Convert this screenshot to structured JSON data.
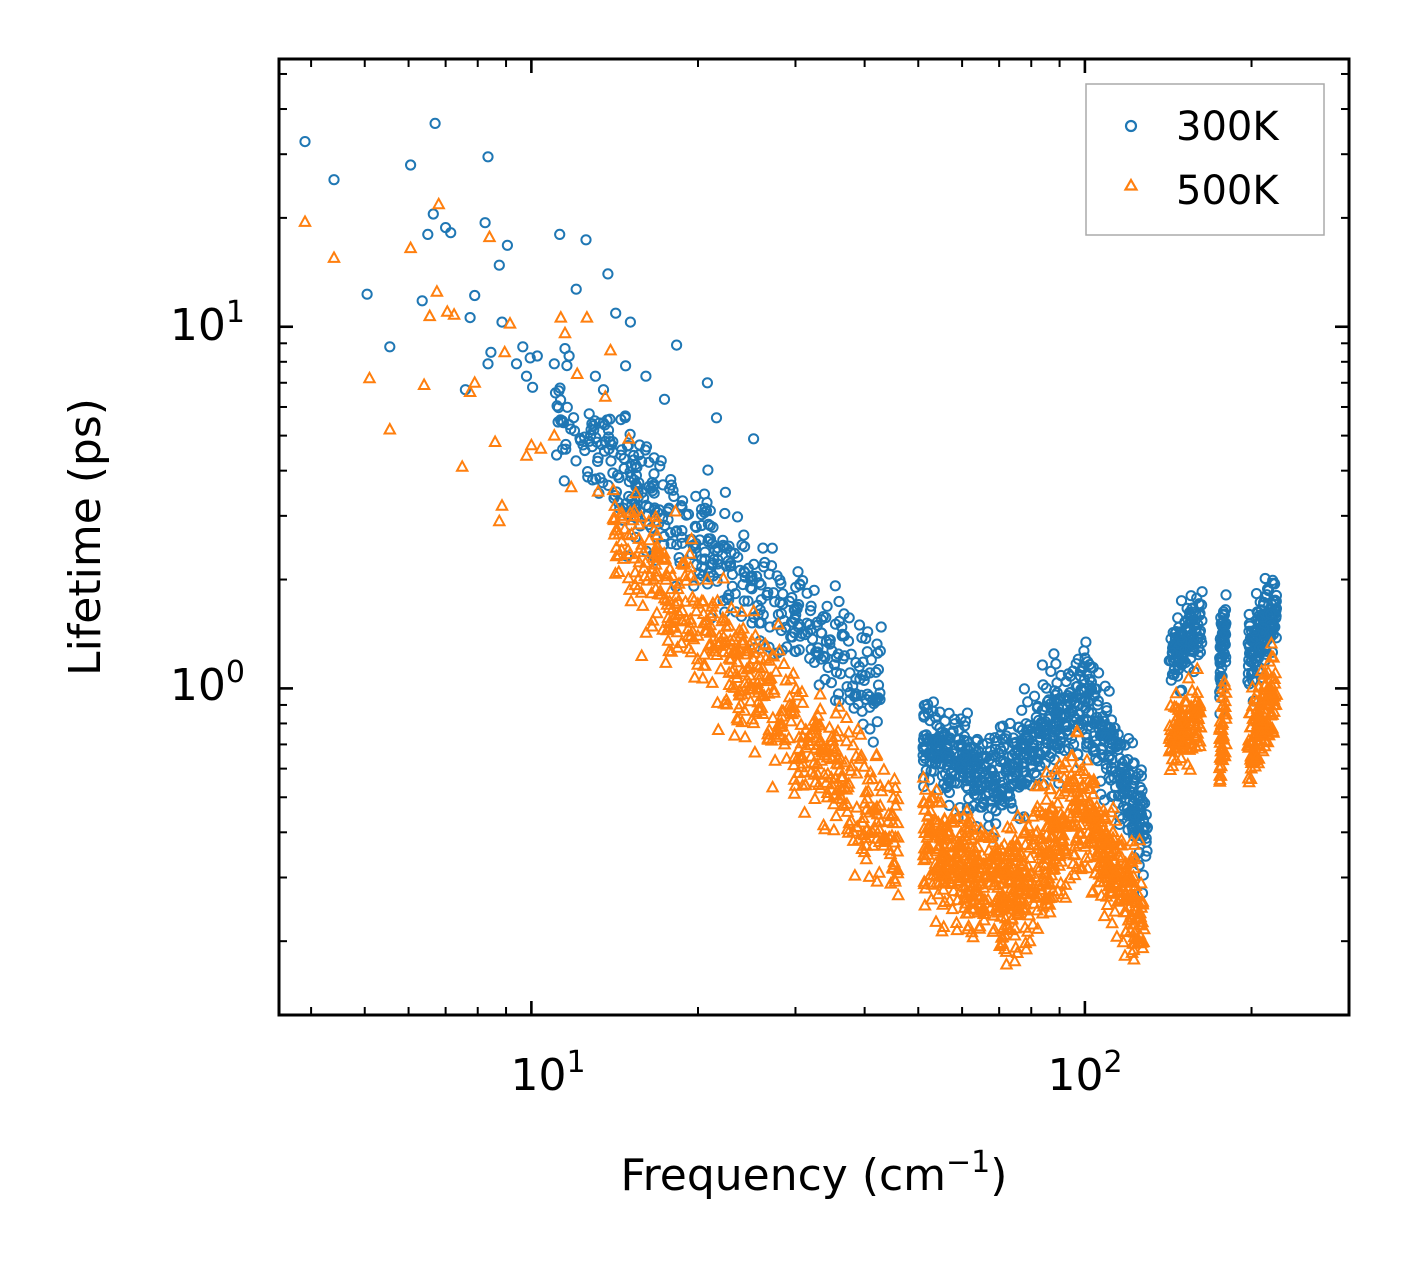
{
  "chart_data": {
    "type": "scatter",
    "title": "",
    "xlabel": "Frequency (cm⁻¹)",
    "xlabel_base": "Frequency (cm",
    "xlabel_sup": "−1",
    "xlabel_end": ")",
    "ylabel": "Lifetime (ps)",
    "xscale": "log",
    "yscale": "log",
    "xlim": [
      3.5,
      300
    ],
    "ylim": [
      0.125,
      55
    ],
    "x_ticks": [
      {
        "base": "10",
        "exp": "1",
        "value": 10
      },
      {
        "base": "10",
        "exp": "2",
        "value": 100
      }
    ],
    "y_ticks": [
      {
        "base": "10",
        "exp": "0",
        "value": 1
      },
      {
        "base": "10",
        "exp": "1",
        "value": 10
      }
    ],
    "legend_position": "top-right",
    "colors": {
      "300K": "#1f77b4",
      "500K": "#ff7f0e",
      "axis": "#000000",
      "legend_border": "#aaaaaa"
    },
    "series": [
      {
        "name": "300K",
        "marker": "circle",
        "color": "#1f77b4",
        "bands": [
          {
            "x": [
              11,
              43
            ],
            "y_start": 5.5,
            "y_end": 1.0,
            "spread": 0.18,
            "n": 460
          },
          {
            "x": [
              51,
              70
            ],
            "y_start": 0.72,
            "y_end": 0.55,
            "spread": 0.14,
            "n": 260
          },
          {
            "x": [
              70,
              103
            ],
            "y_start": 0.6,
            "y_end": 0.95,
            "spread": 0.16,
            "n": 300
          },
          {
            "x": [
              103,
              130
            ],
            "y_start": 0.85,
            "y_end": 0.4,
            "spread": 0.16,
            "n": 200
          },
          {
            "x": [
              142,
              163
            ],
            "y_start": 1.2,
            "y_end": 1.55,
            "spread": 0.1,
            "n": 130
          },
          {
            "x": [
              175,
              180
            ],
            "y_start": 1.1,
            "y_end": 1.6,
            "spread": 0.12,
            "n": 60
          },
          {
            "x": [
              197,
              222
            ],
            "y_start": 1.2,
            "y_end": 1.7,
            "spread": 0.11,
            "n": 150
          }
        ],
        "scattered": [
          [
            3.9,
            32.5
          ],
          [
            4.4,
            25.5
          ],
          [
            5.05,
            12.3
          ],
          [
            5.55,
            8.8
          ],
          [
            6.05,
            28.0
          ],
          [
            6.35,
            11.8
          ],
          [
            6.5,
            18.0
          ],
          [
            6.65,
            20.5
          ],
          [
            6.7,
            36.5
          ],
          [
            7.0,
            18.8
          ],
          [
            7.15,
            18.2
          ],
          [
            7.6,
            6.7
          ],
          [
            7.75,
            10.6
          ],
          [
            7.9,
            12.2
          ],
          [
            8.25,
            19.4
          ],
          [
            8.35,
            29.5
          ],
          [
            8.45,
            8.5
          ],
          [
            8.35,
            7.9
          ],
          [
            8.75,
            14.8
          ],
          [
            8.85,
            10.3
          ],
          [
            9.05,
            16.8
          ],
          [
            9.4,
            7.9
          ],
          [
            9.65,
            8.8
          ],
          [
            9.8,
            7.3
          ],
          [
            9.95,
            8.2
          ],
          [
            10.05,
            6.8
          ],
          [
            10.25,
            8.3
          ],
          [
            11.0,
            7.9
          ],
          [
            11.25,
            18.0
          ],
          [
            11.5,
            8.7
          ],
          [
            11.7,
            8.3
          ],
          [
            12.05,
            12.7
          ],
          [
            12.55,
            17.4
          ],
          [
            13.05,
            7.3
          ],
          [
            13.5,
            6.7
          ],
          [
            13.75,
            14.0
          ],
          [
            14.2,
            10.9
          ],
          [
            14.8,
            7.8
          ],
          [
            15.1,
            10.3
          ],
          [
            16.1,
            7.3
          ],
          [
            17.4,
            6.3
          ],
          [
            18.3,
            8.9
          ],
          [
            20.8,
            7.0
          ],
          [
            21.6,
            5.6
          ],
          [
            25.2,
            4.9
          ]
        ]
      },
      {
        "name": "500K",
        "marker": "triangle",
        "color": "#ff7f0e",
        "bands": [
          {
            "x": [
              14,
              46
            ],
            "y_start": 2.7,
            "y_end": 0.38,
            "spread": 0.2,
            "n": 560
          },
          {
            "x": [
              51,
              70
            ],
            "y_start": 0.38,
            "y_end": 0.28,
            "spread": 0.17,
            "n": 300
          },
          {
            "x": [
              70,
              100
            ],
            "y_start": 0.25,
            "y_end": 0.48,
            "spread": 0.2,
            "n": 340
          },
          {
            "x": [
              100,
              128
            ],
            "y_start": 0.45,
            "y_end": 0.22,
            "spread": 0.18,
            "n": 240
          },
          {
            "x": [
              142,
              163
            ],
            "y_start": 0.7,
            "y_end": 0.9,
            "spread": 0.12,
            "n": 110
          },
          {
            "x": [
              175,
              180
            ],
            "y_start": 0.65,
            "y_end": 0.9,
            "spread": 0.12,
            "n": 50
          },
          {
            "x": [
              197,
              222
            ],
            "y_start": 0.65,
            "y_end": 1.05,
            "spread": 0.13,
            "n": 140
          }
        ],
        "scattered": [
          [
            3.9,
            19.5
          ],
          [
            4.4,
            15.5
          ],
          [
            5.1,
            7.2
          ],
          [
            5.55,
            5.2
          ],
          [
            6.05,
            16.5
          ],
          [
            6.4,
            6.9
          ],
          [
            6.55,
            10.7
          ],
          [
            6.75,
            12.5
          ],
          [
            6.8,
            21.8
          ],
          [
            7.05,
            11.0
          ],
          [
            7.25,
            10.8
          ],
          [
            7.5,
            4.1
          ],
          [
            7.75,
            6.6
          ],
          [
            7.9,
            7.0
          ],
          [
            8.4,
            17.7
          ],
          [
            8.6,
            4.8
          ],
          [
            8.75,
            2.9
          ],
          [
            8.85,
            3.2
          ],
          [
            8.95,
            8.5
          ],
          [
            9.15,
            10.2
          ],
          [
            9.8,
            4.4
          ],
          [
            10.0,
            4.7
          ],
          [
            10.4,
            4.6
          ],
          [
            11.0,
            5.0
          ],
          [
            11.3,
            10.6
          ],
          [
            11.5,
            9.6
          ],
          [
            11.8,
            3.6
          ],
          [
            12.1,
            7.4
          ],
          [
            12.6,
            10.6
          ],
          [
            13.2,
            3.5
          ],
          [
            13.6,
            6.4
          ],
          [
            13.9,
            8.6
          ],
          [
            15.0,
            4.9
          ]
        ]
      }
    ]
  }
}
